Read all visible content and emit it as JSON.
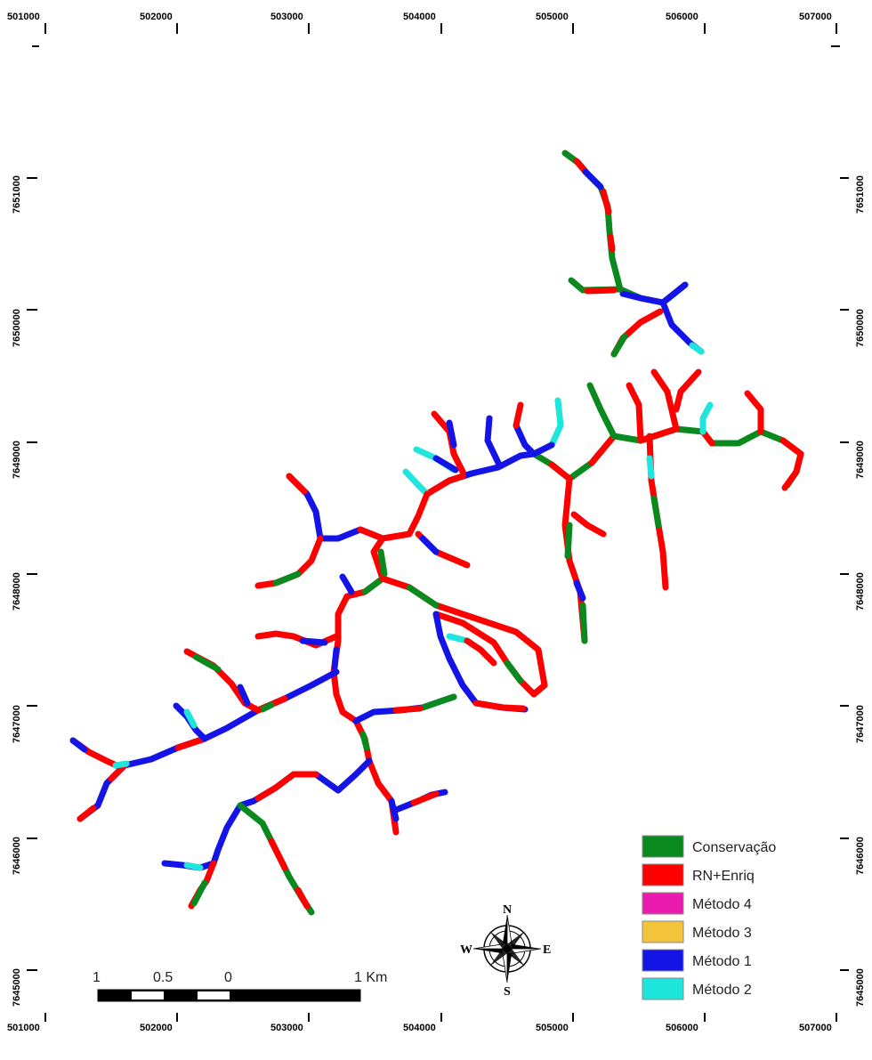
{
  "grid": {
    "x_labels": [
      "501000",
      "502000",
      "503000",
      "504000",
      "505000",
      "506000",
      "507000"
    ],
    "y_labels": [
      "7651000",
      "7650000",
      "7649000",
      "7648000",
      "7647000",
      "7646000",
      "7645000"
    ]
  },
  "legend": {
    "items": [
      {
        "label": "Conservação",
        "color": "#0a8a1e"
      },
      {
        "label": "RN+Enriq",
        "color": "#ff0000"
      },
      {
        "label": "Método 4",
        "color": "#ec1bb0"
      },
      {
        "label": "Método 3",
        "color": "#f3c33c"
      },
      {
        "label": "Método 1",
        "color": "#1414e6"
      },
      {
        "label": "Método 2",
        "color": "#1ee6dc"
      }
    ]
  },
  "scale_bar": {
    "labels": [
      "1",
      "0.5",
      "0",
      "1 Km"
    ]
  },
  "compass": {
    "n": "N",
    "s": "S",
    "e": "E",
    "w": "W"
  },
  "colors": {
    "conservacao": "#0a8a1e",
    "rn_enriq": "#ff0000",
    "metodo4": "#ec1bb0",
    "metodo3": "#f3c33c",
    "metodo1": "#1414e6",
    "metodo2": "#1ee6dc"
  }
}
